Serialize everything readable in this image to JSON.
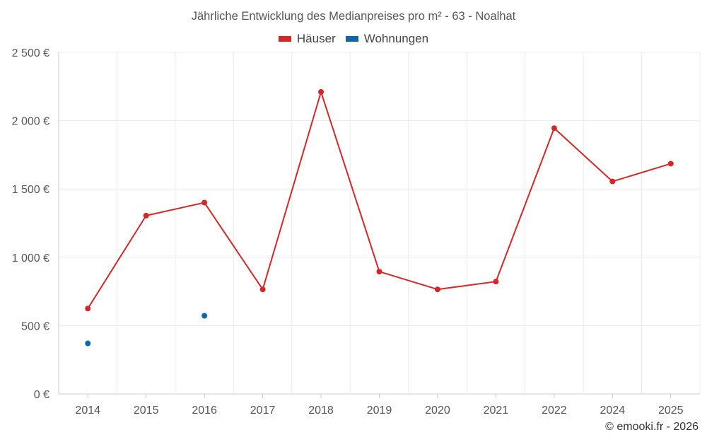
{
  "chart_data": {
    "type": "line",
    "title": "Jährliche Entwicklung des Medianpreises pro m² - 63 - Noalhat",
    "categories": [
      "2014",
      "2015",
      "2016",
      "2017",
      "2018",
      "2019",
      "2020",
      "2021",
      "2022",
      "2024",
      "2025"
    ],
    "ylim": [
      0,
      2500
    ],
    "yticks": [
      0,
      500,
      1000,
      1500,
      2000,
      2500
    ],
    "ytick_labels": [
      "0 €",
      "500 €",
      "1 000 €",
      "1 500 €",
      "2 000 €",
      "2 500 €"
    ],
    "grid": true,
    "legend_position": "top-center",
    "series": [
      {
        "name": "Häuser",
        "color": "#d62728",
        "values": [
          625,
          1305,
          1400,
          765,
          2210,
          895,
          765,
          822,
          1945,
          1555,
          1685
        ]
      },
      {
        "name": "Wohnungen",
        "color": "#0f67a3",
        "values": [
          370,
          null,
          572,
          null,
          null,
          null,
          null,
          null,
          null,
          null,
          null
        ]
      }
    ]
  },
  "footer": {
    "text": "© emooki.fr - 2026"
  }
}
